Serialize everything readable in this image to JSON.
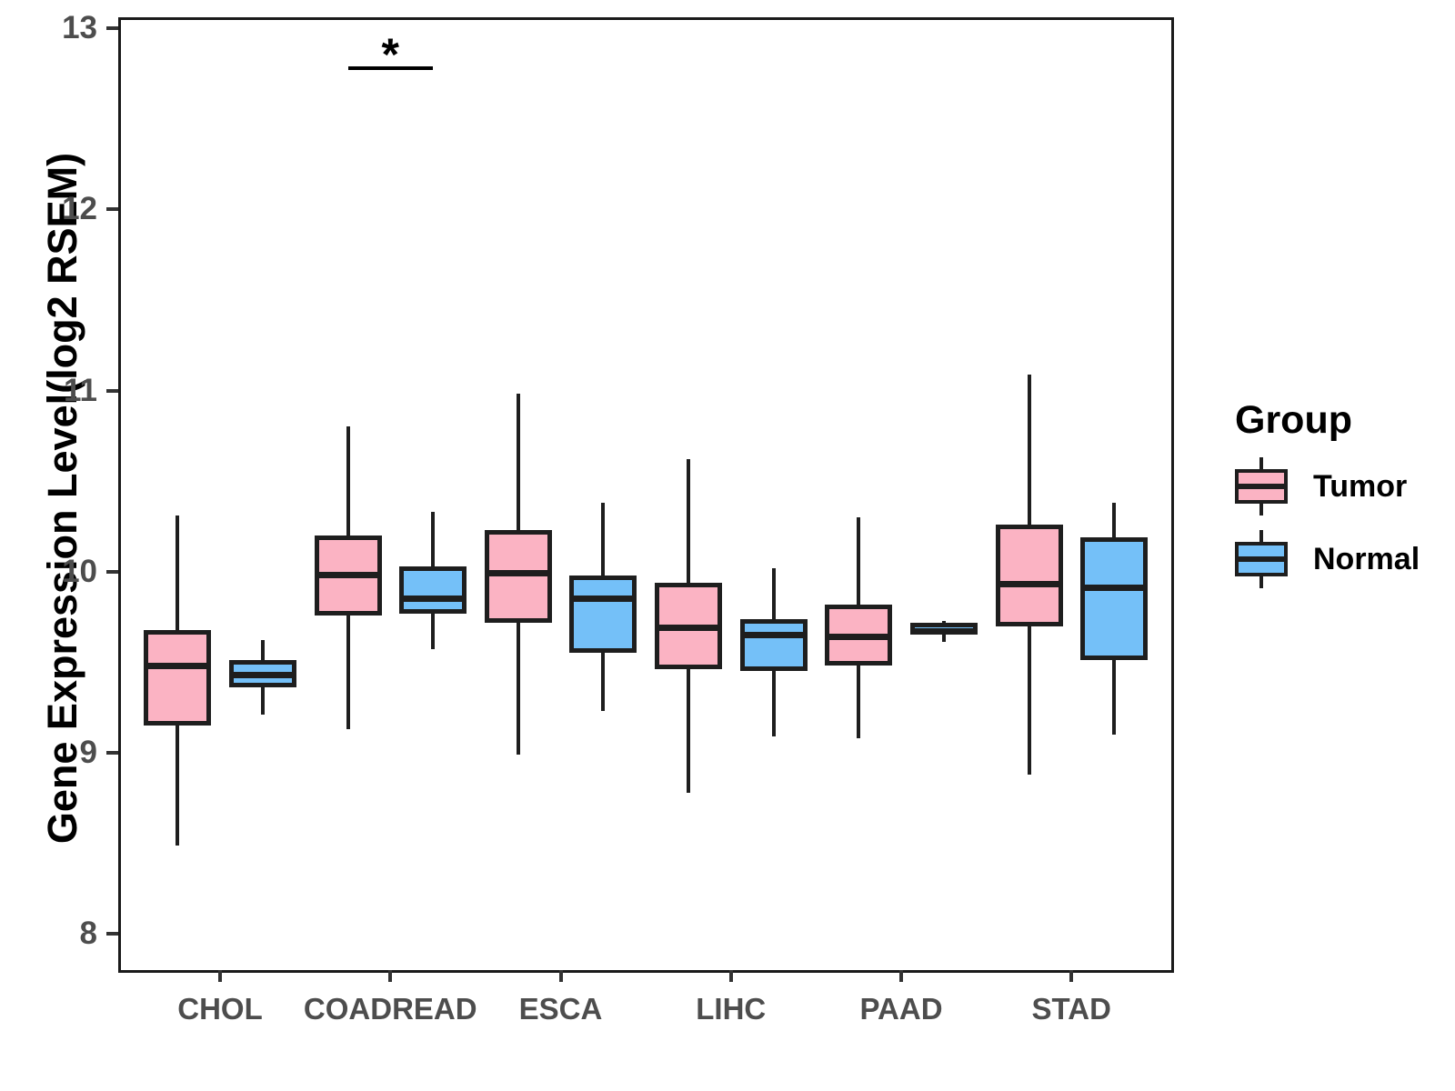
{
  "chart_data": {
    "type": "boxplot",
    "title": "",
    "xlabel": "",
    "ylabel": "Gene Expression Level(log2 RSEM)",
    "categories": [
      "CHOL",
      "COADREAD",
      "ESCA",
      "LIHC",
      "PAAD",
      "STAD"
    ],
    "yticks": [
      8,
      9,
      10,
      11,
      12,
      13
    ],
    "ylim": [
      7.79,
      13.05
    ],
    "grid": "off",
    "legend": {
      "title": "Group",
      "position": "right"
    },
    "series": [
      {
        "name": "Tumor",
        "color": "#FBB3C3",
        "stroke": "#1e1e1e",
        "boxes": [
          {
            "category": "CHOL",
            "whisker_low": 8.49,
            "q1": 9.15,
            "median": 9.48,
            "q3": 9.68,
            "whisker_high": 10.31
          },
          {
            "category": "COADREAD",
            "whisker_low": 9.13,
            "q1": 9.76,
            "median": 9.98,
            "q3": 10.2,
            "whisker_high": 10.8
          },
          {
            "category": "ESCA",
            "whisker_low": 8.99,
            "q1": 9.72,
            "median": 9.99,
            "q3": 10.23,
            "whisker_high": 10.98
          },
          {
            "category": "LIHC",
            "whisker_low": 8.78,
            "q1": 9.46,
            "median": 9.69,
            "q3": 9.94,
            "whisker_high": 10.62
          },
          {
            "category": "PAAD",
            "whisker_low": 9.08,
            "q1": 9.48,
            "median": 9.64,
            "q3": 9.82,
            "whisker_high": 10.3
          },
          {
            "category": "STAD",
            "whisker_low": 8.88,
            "q1": 9.7,
            "median": 9.93,
            "q3": 10.26,
            "whisker_high": 11.09
          }
        ]
      },
      {
        "name": "Normal",
        "color": "#74C0F8",
        "stroke": "#1e1e1e",
        "boxes": [
          {
            "category": "CHOL",
            "whisker_low": 9.21,
            "q1": 9.36,
            "median": 9.43,
            "q3": 9.51,
            "whisker_high": 9.62
          },
          {
            "category": "COADREAD",
            "whisker_low": 9.57,
            "q1": 9.77,
            "median": 9.85,
            "q3": 10.03,
            "whisker_high": 10.33
          },
          {
            "category": "ESCA",
            "whisker_low": 9.23,
            "q1": 9.55,
            "median": 9.85,
            "q3": 9.98,
            "whisker_high": 10.38
          },
          {
            "category": "LIHC",
            "whisker_low": 9.09,
            "q1": 9.45,
            "median": 9.65,
            "q3": 9.74,
            "whisker_high": 10.02
          },
          {
            "category": "PAAD",
            "whisker_low": 9.61,
            "q1": 9.65,
            "median": 9.67,
            "q3": 9.72,
            "whisker_high": 9.73
          },
          {
            "category": "STAD",
            "whisker_low": 9.1,
            "q1": 9.51,
            "median": 9.91,
            "q3": 10.19,
            "whisker_high": 10.38
          }
        ]
      }
    ],
    "significance": {
      "label": "*",
      "category": "COADREAD",
      "bar_y": 12.78,
      "compares": [
        "Tumor",
        "Normal"
      ]
    }
  }
}
